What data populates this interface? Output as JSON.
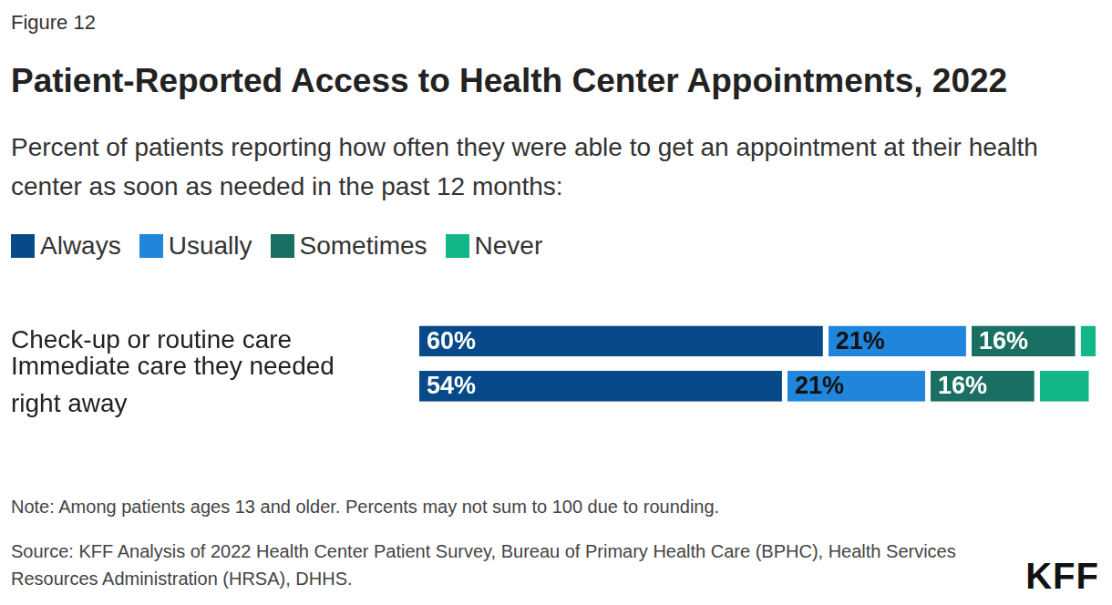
{
  "chart_data": {
    "type": "bar",
    "orientation": "horizontal",
    "stacked": true,
    "figure_label": "Figure 12",
    "title": "Patient-Reported Access to Health Center Appointments, 2022",
    "subtitle": "Percent of patients reporting how often they were able to get an appointment at their health center as soon as needed in the past 12 months:",
    "categories": [
      "Check-up or routine care",
      "Immediate care they needed right away"
    ],
    "series": [
      {
        "name": "Always",
        "color": "#08498a",
        "values": [
          60,
          54
        ],
        "value_labels": [
          "60%",
          "54%"
        ]
      },
      {
        "name": "Usually",
        "color": "#1f86dc",
        "values": [
          21,
          21
        ],
        "value_labels": [
          "21%",
          "21%"
        ]
      },
      {
        "name": "Sometimes",
        "color": "#1a6f63",
        "values": [
          16,
          16
        ],
        "value_labels": [
          "16%",
          "16%"
        ]
      },
      {
        "name": "Never",
        "color": "#13b689",
        "values": [
          3,
          8
        ],
        "value_labels": [
          null,
          null
        ]
      }
    ],
    "xlim": [
      0,
      100
    ],
    "grid": false,
    "legend": "top-left",
    "data_labels": true,
    "tick_labels": "y",
    "note": "Note: Among patients ages 13 and older. Percents may not sum to 100 due to rounding.",
    "source": "Source: KFF Analysis of 2022 Health Center Patient Survey, Bureau of Primary Health Care (BPHC), Health Services Resources Administration (HRSA), DHHS.",
    "logo": "KFF"
  }
}
